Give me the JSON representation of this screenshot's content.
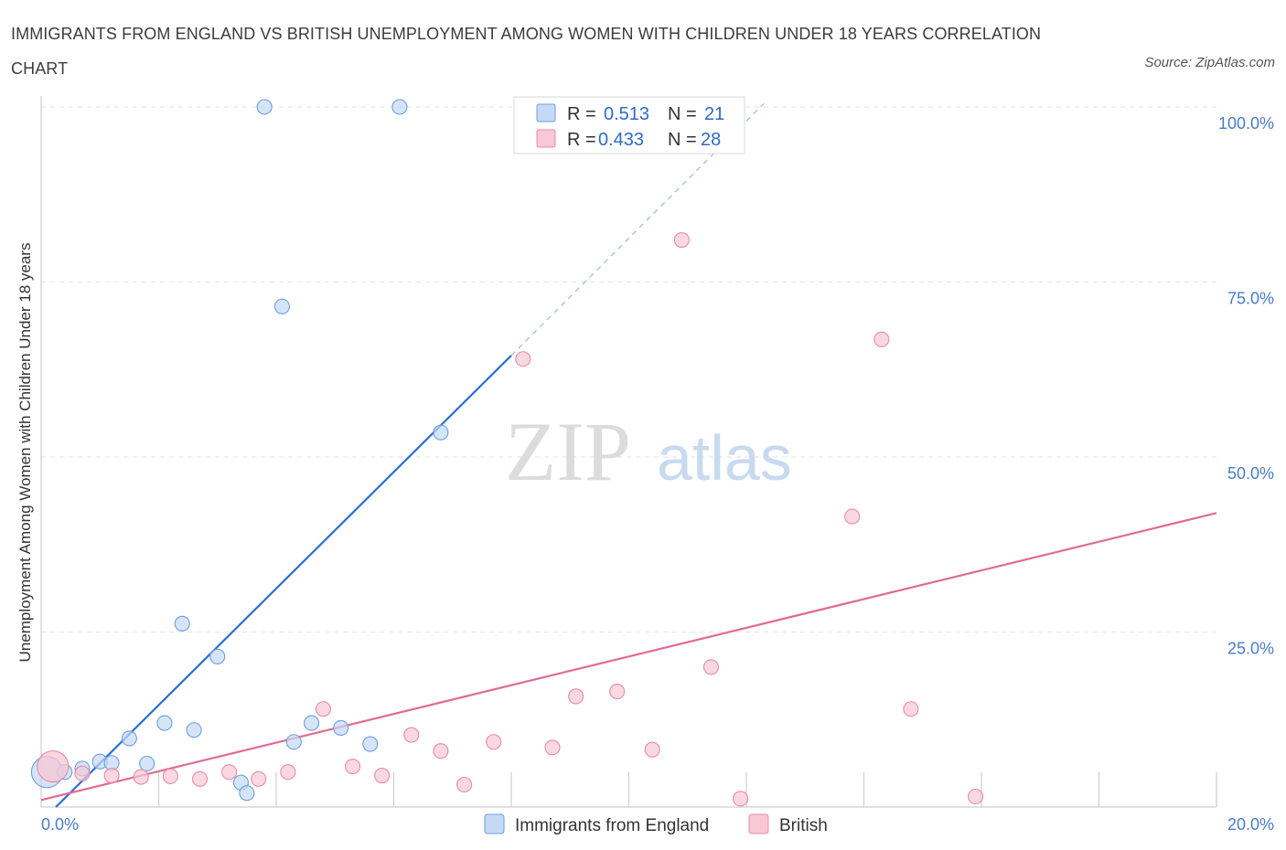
{
  "title": "IMMIGRANTS FROM ENGLAND VS BRITISH UNEMPLOYMENT AMONG WOMEN WITH CHILDREN UNDER 18 YEARS CORRELATION CHART",
  "source": "Source: ZipAtlas.com",
  "watermark": {
    "zip": "ZIP",
    "atlas": "atlas"
  },
  "chart_data": {
    "type": "scatter",
    "xlabel": "",
    "ylabel": "Unemployment Among Women with Children Under 18 years",
    "xlim": [
      0,
      20
    ],
    "ylim": [
      0,
      100
    ],
    "x_tick_labels": [
      "0.0%",
      "20.0%"
    ],
    "y_tick_labels": [
      "25.0%",
      "50.0%",
      "75.0%",
      "100.0%"
    ],
    "y_ticks": [
      25,
      50,
      75,
      100
    ],
    "legend_position": "top-center",
    "series": [
      {
        "name": "Immigrants from England",
        "color": "#6a9fe0",
        "fill": "#c5d9f5",
        "line_color": "#2a6fd1",
        "R": "0.513",
        "N": "21",
        "trend": {
          "x0": 0.25,
          "y0": 0.0,
          "x1": 8.0,
          "y1": 64.5,
          "dash_to_x": 12.3,
          "dash_to_y": 100.5
        },
        "points": [
          {
            "x": 0.1,
            "y": 5.0,
            "big": true
          },
          {
            "x": 0.4,
            "y": 5.0
          },
          {
            "x": 0.7,
            "y": 5.5
          },
          {
            "x": 1.0,
            "y": 6.5
          },
          {
            "x": 1.2,
            "y": 6.3
          },
          {
            "x": 1.5,
            "y": 9.8
          },
          {
            "x": 1.8,
            "y": 6.2
          },
          {
            "x": 2.1,
            "y": 12.0
          },
          {
            "x": 2.4,
            "y": 26.2
          },
          {
            "x": 2.6,
            "y": 11.0
          },
          {
            "x": 3.0,
            "y": 21.5
          },
          {
            "x": 3.4,
            "y": 3.5
          },
          {
            "x": 3.5,
            "y": 2.0
          },
          {
            "x": 3.8,
            "y": 100.0
          },
          {
            "x": 4.1,
            "y": 71.5
          },
          {
            "x": 4.3,
            "y": 9.3
          },
          {
            "x": 4.6,
            "y": 12.0
          },
          {
            "x": 5.1,
            "y": 11.3
          },
          {
            "x": 5.6,
            "y": 9.0
          },
          {
            "x": 6.1,
            "y": 100.0
          },
          {
            "x": 6.8,
            "y": 53.5
          }
        ]
      },
      {
        "name": "British",
        "color": "#e88aa8",
        "fill": "#f8c8d6",
        "line_color": "#e06b95",
        "R": "0.433",
        "N": "28",
        "trend": {
          "x0": 0.0,
          "y0": 1.0,
          "x1": 20.0,
          "y1": 42.0
        },
        "points": [
          {
            "x": 0.2,
            "y": 5.8,
            "big": true
          },
          {
            "x": 0.7,
            "y": 4.8
          },
          {
            "x": 1.2,
            "y": 4.5
          },
          {
            "x": 1.7,
            "y": 4.3
          },
          {
            "x": 2.2,
            "y": 4.4
          },
          {
            "x": 2.7,
            "y": 4.0
          },
          {
            "x": 3.2,
            "y": 5.0
          },
          {
            "x": 3.7,
            "y": 4.0
          },
          {
            "x": 4.2,
            "y": 5.0
          },
          {
            "x": 4.8,
            "y": 14.0
          },
          {
            "x": 5.3,
            "y": 5.8
          },
          {
            "x": 5.8,
            "y": 4.5
          },
          {
            "x": 6.3,
            "y": 10.3
          },
          {
            "x": 6.8,
            "y": 8.0
          },
          {
            "x": 7.2,
            "y": 3.2
          },
          {
            "x": 7.7,
            "y": 9.3
          },
          {
            "x": 8.2,
            "y": 64.0
          },
          {
            "x": 8.7,
            "y": 8.5
          },
          {
            "x": 9.1,
            "y": 15.8
          },
          {
            "x": 9.8,
            "y": 16.5
          },
          {
            "x": 10.4,
            "y": 8.2
          },
          {
            "x": 10.9,
            "y": 81.0
          },
          {
            "x": 11.4,
            "y": 20.0
          },
          {
            "x": 11.9,
            "y": 1.2
          },
          {
            "x": 13.8,
            "y": 41.5
          },
          {
            "x": 14.3,
            "y": 66.8
          },
          {
            "x": 14.8,
            "y": 14.0
          },
          {
            "x": 15.9,
            "y": 1.5
          }
        ]
      }
    ]
  }
}
